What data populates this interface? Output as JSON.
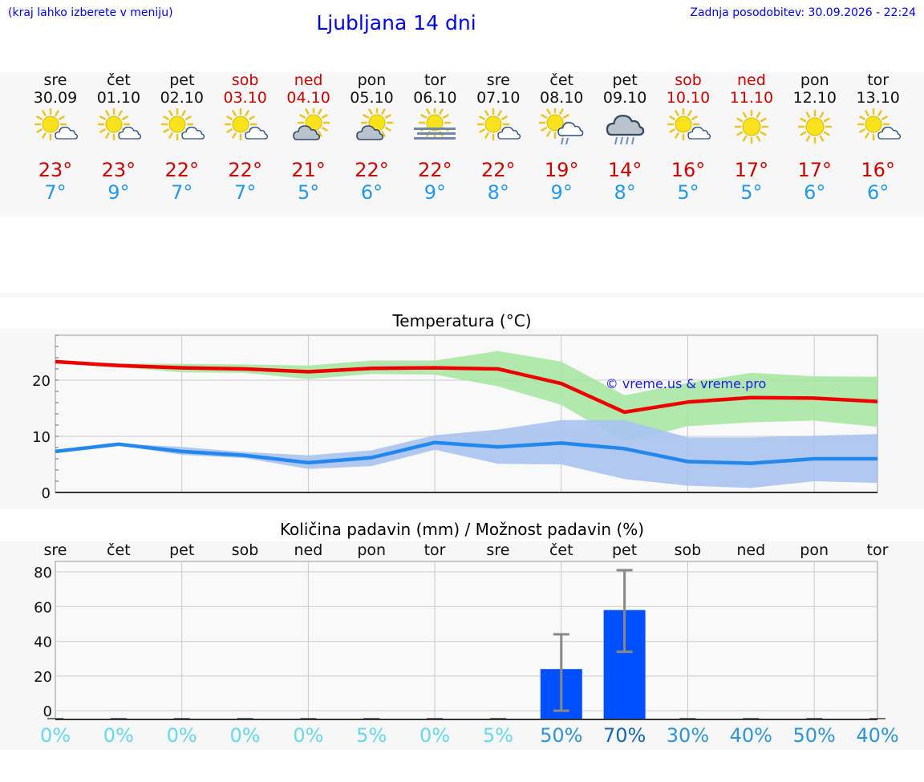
{
  "header": {
    "menu_hint": "(kraj lahko izberete v meniju)",
    "title": "Ljubljana 14 dni",
    "updated": "Zadnja posodobitev: 30.09.2026 - 22:24"
  },
  "days": [
    {
      "name": "sre",
      "date": "30.09",
      "weekend": false,
      "icon": "sun-cloud-icon",
      "tmax": "23°",
      "tmin": "7°"
    },
    {
      "name": "čet",
      "date": "01.10",
      "weekend": false,
      "icon": "sun-cloud-icon",
      "tmax": "23°",
      "tmin": "9°"
    },
    {
      "name": "pet",
      "date": "02.10",
      "weekend": false,
      "icon": "sun-cloud-icon",
      "tmax": "22°",
      "tmin": "7°"
    },
    {
      "name": "sob",
      "date": "03.10",
      "weekend": true,
      "icon": "sun-cloud-icon",
      "tmax": "22°",
      "tmin": "7°"
    },
    {
      "name": "ned",
      "date": "04.10",
      "weekend": true,
      "icon": "partly-cloudy-icon",
      "tmax": "21°",
      "tmin": "5°"
    },
    {
      "name": "pon",
      "date": "05.10",
      "weekend": false,
      "icon": "partly-cloudy-icon",
      "tmax": "22°",
      "tmin": "6°"
    },
    {
      "name": "tor",
      "date": "06.10",
      "weekend": false,
      "icon": "sun-fog-icon",
      "tmax": "22°",
      "tmin": "9°"
    },
    {
      "name": "sre",
      "date": "07.10",
      "weekend": false,
      "icon": "sun-cloud-icon",
      "tmax": "22°",
      "tmin": "8°"
    },
    {
      "name": "čet",
      "date": "08.10",
      "weekend": false,
      "icon": "sun-cloud-rain-icon",
      "tmax": "19°",
      "tmin": "9°"
    },
    {
      "name": "pet",
      "date": "09.10",
      "weekend": false,
      "icon": "cloud-rain-icon",
      "tmax": "14°",
      "tmin": "8°"
    },
    {
      "name": "sob",
      "date": "10.10",
      "weekend": true,
      "icon": "sun-cloud-icon",
      "tmax": "16°",
      "tmin": "5°"
    },
    {
      "name": "ned",
      "date": "11.10",
      "weekend": true,
      "icon": "sun-icon",
      "tmax": "17°",
      "tmin": "5°"
    },
    {
      "name": "pon",
      "date": "12.10",
      "weekend": false,
      "icon": "sun-icon",
      "tmax": "17°",
      "tmin": "6°"
    },
    {
      "name": "tor",
      "date": "13.10",
      "weekend": false,
      "icon": "sun-cloud-icon",
      "tmax": "16°",
      "tmin": "6°"
    }
  ],
  "colors": {
    "max": "#ee0000",
    "min": "#2288ee",
    "max_band": "#a8e6a3",
    "min_band": "#a9c3f0",
    "bar": "#0050ff"
  },
  "chart_data": [
    {
      "type": "line",
      "title": "Temperatura (°C)",
      "watermark": "© vreme.us & vreme.pro",
      "x": [
        0,
        1,
        2,
        3,
        4,
        5,
        6,
        7,
        8,
        9,
        10,
        11,
        12,
        13
      ],
      "ylim": [
        0,
        28
      ],
      "yticks": [
        0,
        10,
        20
      ],
      "grid": true,
      "series": [
        {
          "values": [
            23.3,
            22.6,
            22.2,
            22.0,
            21.5,
            22.1,
            22.2,
            22.0,
            19.4,
            14.3,
            16.1,
            16.9,
            16.8,
            16.2
          ],
          "band_low": [
            23.3,
            22.3,
            21.4,
            21.3,
            20.2,
            21.1,
            21.0,
            18.9,
            15.6,
            9.0,
            11.8,
            12.5,
            12.8,
            11.7
          ],
          "band_high": [
            23.3,
            23.0,
            22.9,
            22.8,
            22.6,
            23.5,
            23.5,
            25.2,
            23.3,
            17.3,
            19.5,
            21.3,
            20.7,
            20.6
          ]
        },
        {
          "values": [
            7.3,
            8.6,
            7.3,
            6.6,
            5.3,
            6.2,
            8.9,
            8.1,
            8.8,
            7.8,
            5.5,
            5.2,
            6.0,
            6.0
          ],
          "band_low": [
            7.3,
            8.4,
            6.7,
            6.1,
            4.2,
            4.7,
            7.6,
            5.1,
            5.0,
            2.4,
            1.2,
            0.8,
            2.0,
            1.7
          ],
          "band_high": [
            7.3,
            8.7,
            8.1,
            7.2,
            6.6,
            7.5,
            10.2,
            11.2,
            12.9,
            12.9,
            9.8,
            9.8,
            10.1,
            10.4
          ]
        }
      ]
    },
    {
      "type": "bar",
      "title": "Količina padavin (mm) / Možnost padavin (%)",
      "categories": [
        "sre",
        "čet",
        "pet",
        "sob",
        "ned",
        "pon",
        "tor",
        "sre",
        "čet",
        "pet",
        "sob",
        "ned",
        "pon",
        "tor"
      ],
      "ylim": [
        -5,
        86
      ],
      "yticks": [
        0,
        20,
        40,
        60,
        80
      ],
      "values": [
        0,
        0,
        0,
        0,
        0,
        0,
        0,
        0,
        24,
        58,
        0,
        0,
        0,
        0
      ],
      "err_low": [
        0,
        0,
        0,
        0,
        0,
        0,
        0,
        0,
        0,
        34,
        0,
        0,
        0,
        0
      ],
      "err_high": [
        0,
        0,
        0,
        0,
        0,
        0,
        0,
        0,
        44,
        81,
        0,
        0,
        0,
        0
      ],
      "probability": [
        "0%",
        "0%",
        "0%",
        "0%",
        "0%",
        "5%",
        "0%",
        "5%",
        "50%",
        "70%",
        "30%",
        "40%",
        "50%",
        "40%"
      ]
    }
  ]
}
